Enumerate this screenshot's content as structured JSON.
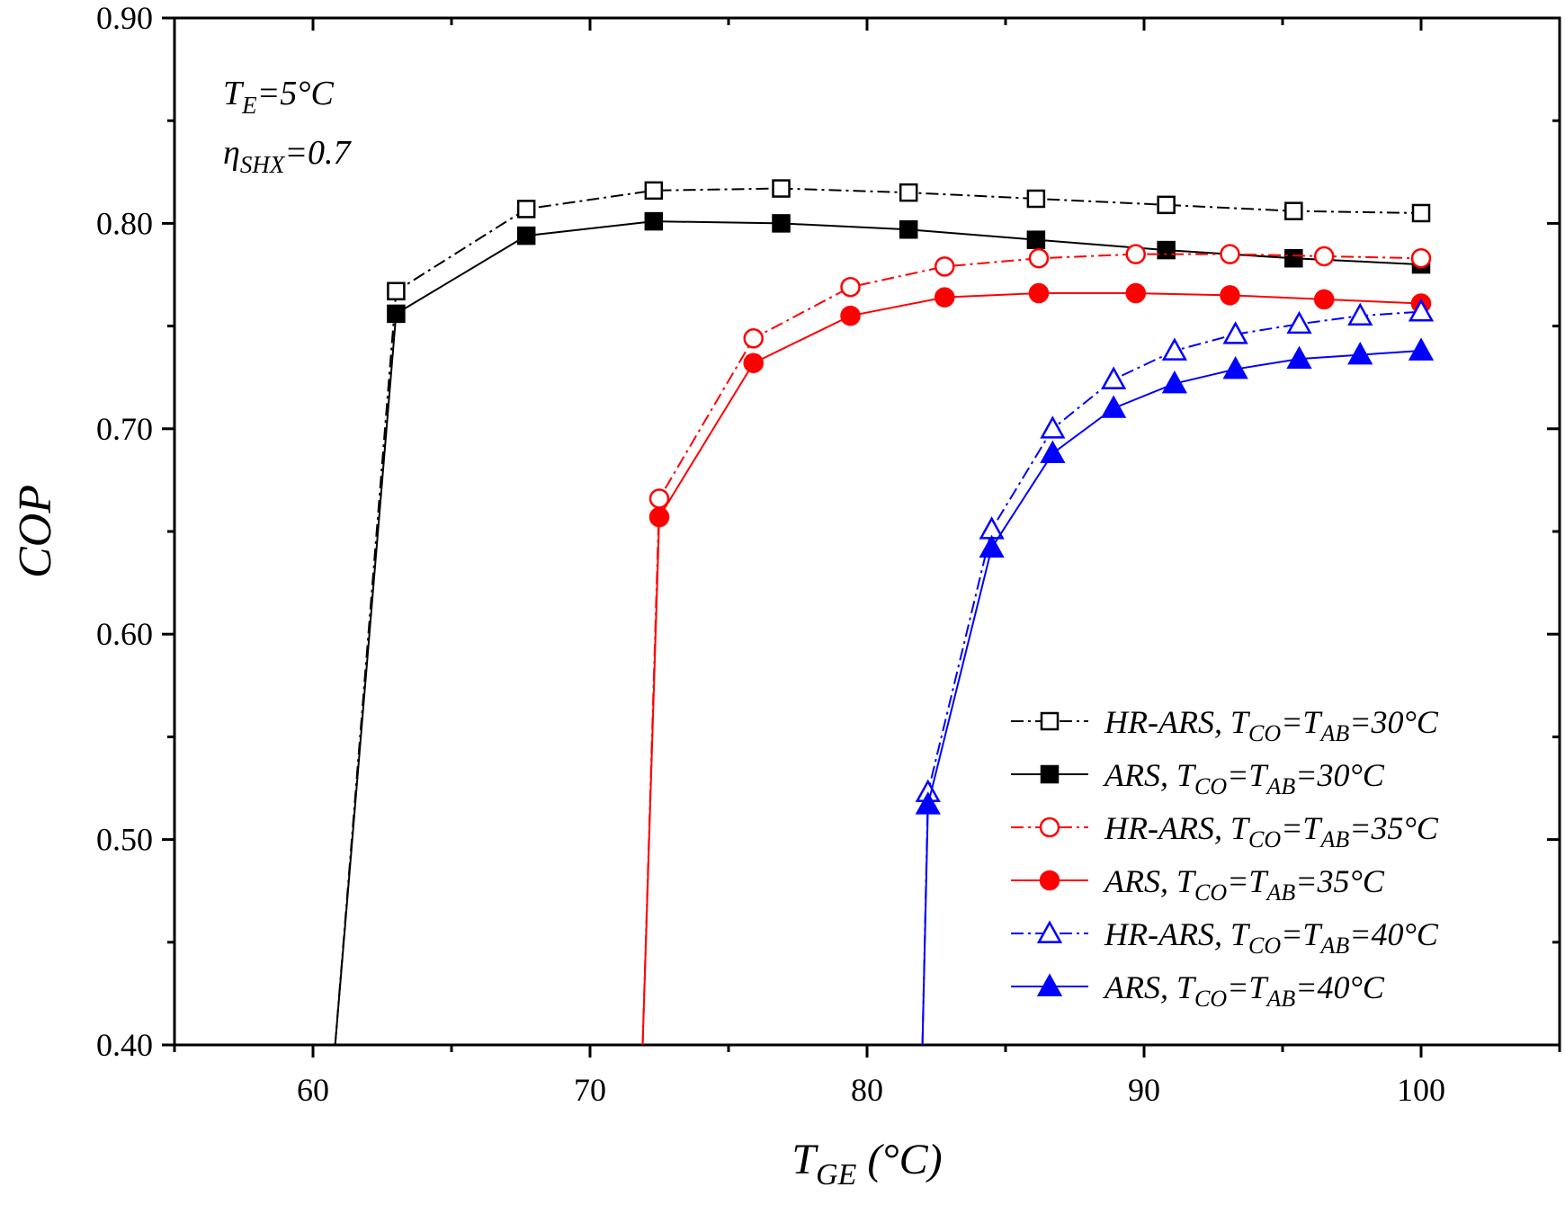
{
  "chart_data": {
    "type": "line",
    "title": "",
    "xlabel": {
      "main": "T",
      "sub": "GE",
      "rest": " (°C)"
    },
    "ylabel": "COP",
    "xlim": [
      55,
      105
    ],
    "ylim": [
      0.4,
      0.9
    ],
    "x_ticks": [
      60,
      70,
      80,
      90,
      100
    ],
    "y_ticks": [
      0.4,
      0.5,
      0.6,
      0.7,
      0.8,
      0.9
    ],
    "y_tick_labels": [
      "0.40",
      "0.50",
      "0.60",
      "0.70",
      "0.80",
      "0.90"
    ],
    "legend_position": "bottom-right",
    "annotations": [
      {
        "main": "T",
        "sub": "E",
        "rest": "=5°C"
      },
      {
        "main": "η",
        "sub": "SHX",
        "rest": "=0.7"
      }
    ],
    "series": [
      {
        "name": "HR-ARS, TCO=TAB=30°C",
        "label_main": "HR-ARS, ",
        "color": "#000000",
        "marker": "square",
        "filled": false,
        "line": "dash-dot",
        "x": [
          60.8,
          63.0,
          67.7,
          72.3,
          76.9,
          81.5,
          86.1,
          90.8,
          95.4,
          100.0
        ],
        "y": [
          0.4,
          0.767,
          0.807,
          0.816,
          0.817,
          0.815,
          0.812,
          0.809,
          0.806,
          0.805
        ],
        "marker_from": 1
      },
      {
        "name": "ARS, TCO=TAB=30°C",
        "label_main": "ARS, ",
        "color": "#000000",
        "marker": "square",
        "filled": true,
        "line": "solid",
        "x": [
          60.8,
          63.0,
          67.7,
          72.3,
          76.9,
          81.5,
          86.1,
          90.8,
          95.4,
          100.0
        ],
        "y": [
          0.4,
          0.756,
          0.794,
          0.801,
          0.8,
          0.797,
          0.792,
          0.787,
          0.783,
          0.78
        ],
        "marker_from": 1
      },
      {
        "name": "HR-ARS, TCO=TAB=35°C",
        "label_main": "HR-ARS, ",
        "color": "#ff0000",
        "marker": "circle",
        "filled": false,
        "line": "dash-dot",
        "x": [
          71.9,
          72.5,
          75.9,
          79.4,
          82.8,
          86.2,
          89.7,
          93.1,
          96.5,
          100.0
        ],
        "y": [
          0.4,
          0.666,
          0.744,
          0.769,
          0.779,
          0.783,
          0.785,
          0.785,
          0.784,
          0.783
        ],
        "marker_from": 1
      },
      {
        "name": "ARS, TCO=TAB=35°C",
        "label_main": "ARS, ",
        "color": "#ff0000",
        "marker": "circle",
        "filled": true,
        "line": "solid",
        "x": [
          71.9,
          72.5,
          75.9,
          79.4,
          82.8,
          86.2,
          89.7,
          93.1,
          96.5,
          100.0
        ],
        "y": [
          0.4,
          0.657,
          0.732,
          0.755,
          0.764,
          0.766,
          0.766,
          0.765,
          0.763,
          0.761
        ],
        "marker_from": 1
      },
      {
        "name": "HR-ARS, TCO=TAB=40°C",
        "label_main": "HR-ARS, ",
        "color": "#0000ff",
        "marker": "triangle",
        "filled": false,
        "line": "dash-dot",
        "x": [
          82.0,
          82.2,
          84.5,
          86.7,
          88.9,
          91.1,
          93.3,
          95.6,
          97.8,
          100.0
        ],
        "y": [
          0.4,
          0.523,
          0.651,
          0.7,
          0.724,
          0.738,
          0.746,
          0.751,
          0.755,
          0.757
        ],
        "marker_from": 1
      },
      {
        "name": "ARS, TCO=TAB=40°C",
        "label_main": "ARS, ",
        "color": "#0000ff",
        "marker": "triangle",
        "filled": true,
        "line": "solid",
        "x": [
          82.0,
          82.2,
          84.5,
          86.7,
          88.9,
          91.1,
          93.3,
          95.6,
          97.8,
          100.0
        ],
        "y": [
          0.4,
          0.517,
          0.642,
          0.688,
          0.71,
          0.722,
          0.729,
          0.734,
          0.736,
          0.738
        ],
        "marker_from": 1
      }
    ],
    "legend_suffix_parts": [
      [
        "T",
        "CO",
        "=T",
        "AB",
        "=30°C"
      ],
      [
        "T",
        "CO",
        "=T",
        "AB",
        "=30°C"
      ],
      [
        "T",
        "CO",
        "=T",
        "AB",
        "=35°C"
      ],
      [
        "T",
        "CO",
        "=T",
        "AB",
        "=35°C"
      ],
      [
        "T",
        "CO",
        "=T",
        "AB",
        "=40°C"
      ],
      [
        "T",
        "CO",
        "=T",
        "AB",
        "=40°C"
      ]
    ]
  }
}
